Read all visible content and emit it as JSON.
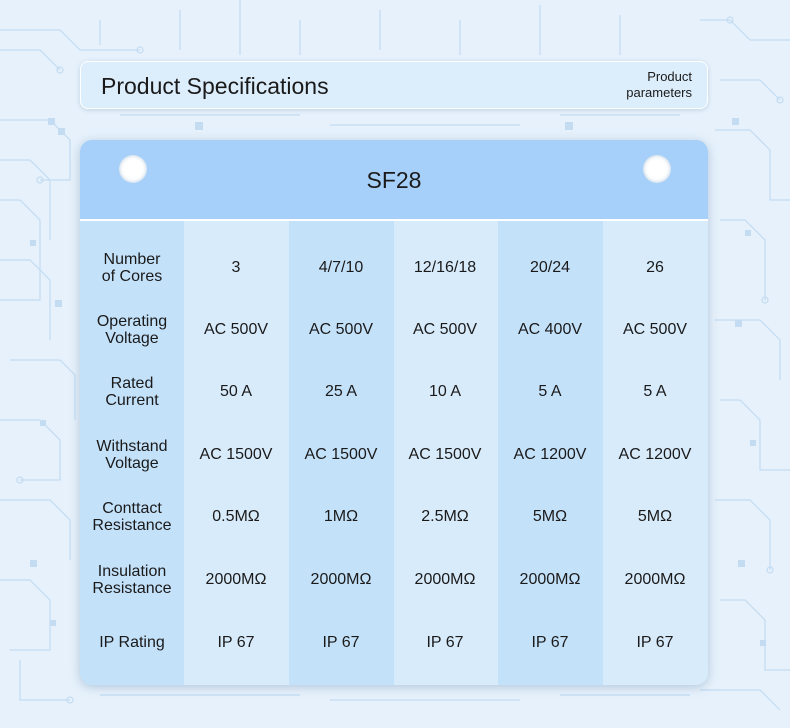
{
  "header": {
    "title": "Product Specifications",
    "subtitle_line1": "Product",
    "subtitle_line2": "parameters"
  },
  "table": {
    "title": "SF28",
    "rows": [
      {
        "label_line1": "Number",
        "label_line2": "of Cores",
        "values": [
          "3",
          "4/7/10",
          "12/16/18",
          "20/24",
          "26"
        ]
      },
      {
        "label_line1": "Operating",
        "label_line2": "Voltage",
        "values": [
          "AC 500V",
          "AC 500V",
          "AC 500V",
          "AC 400V",
          "AC 500V"
        ]
      },
      {
        "label_line1": "Rated",
        "label_line2": "Current",
        "values": [
          "50 A",
          "25 A",
          "10 A",
          "5 A",
          "5 A"
        ]
      },
      {
        "label_line1": "Withstand",
        "label_line2": "Voltage",
        "values": [
          "AC 1500V",
          "AC 1500V",
          "AC 1500V",
          "AC 1200V",
          "AC 1200V"
        ]
      },
      {
        "label_line1": "Conttact",
        "label_line2": "Resistance",
        "values": [
          "0.5MΩ",
          "1MΩ",
          "2.5MΩ",
          "5MΩ",
          "5MΩ"
        ]
      },
      {
        "label_line1": "Insulation",
        "label_line2": "Resistance",
        "values": [
          "2000MΩ",
          "2000MΩ",
          "2000MΩ",
          "2000MΩ",
          "2000MΩ"
        ]
      },
      {
        "label_line1": "IP Rating",
        "label_line2": "",
        "values": [
          "IP 67",
          "IP 67",
          "IP 67",
          "IP 67",
          "IP 67"
        ]
      }
    ]
  },
  "colors": {
    "background": "#e6f1fb",
    "header_band": "#a6d0f9",
    "column_light": "#d8ebfb",
    "column_dark": "#c4e1fa",
    "circuit_lines": "#c3dcf2"
  }
}
